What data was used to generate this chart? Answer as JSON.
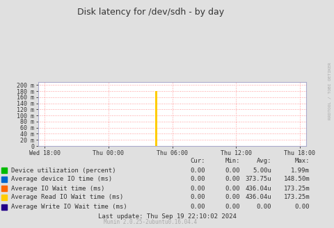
{
  "title": "Disk latency for /dev/sdh - by day",
  "bg_color": "#e0e0e0",
  "plot_bg_color": "#ffffff",
  "grid_color": "#ff9999",
  "yticks": [
    0,
    20,
    40,
    60,
    80,
    100,
    120,
    140,
    160,
    180,
    200
  ],
  "ytick_labels": [
    "0",
    "20 m",
    "40 m",
    "60 m",
    "80 m",
    "100 m",
    "120 m",
    "140 m",
    "160 m",
    "180 m",
    "200 m"
  ],
  "ylim": [
    0,
    210
  ],
  "xtick_labels": [
    "Wed 18:00",
    "Thu 00:00",
    "Thu 06:00",
    "Thu 12:00",
    "Thu 18:00"
  ],
  "spike_color": "#ffcc00",
  "legend_items": [
    {
      "label": "Device utilization (percent)",
      "color": "#00bb00"
    },
    {
      "label": "Average device IO time (ms)",
      "color": "#0066cc"
    },
    {
      "label": "Average IO Wait time (ms)",
      "color": "#ff6600"
    },
    {
      "label": "Average Read IO Wait time (ms)",
      "color": "#ffcc00"
    },
    {
      "label": "Average Write IO Wait time (ms)",
      "color": "#220088"
    }
  ],
  "table_header": [
    "Cur:",
    "Min:",
    "Avg:",
    "Max:"
  ],
  "table_rows": [
    [
      "0.00",
      "0.00",
      "5.00u",
      "1.99m"
    ],
    [
      "0.00",
      "0.00",
      "373.75u",
      "148.50m"
    ],
    [
      "0.00",
      "0.00",
      "436.04u",
      "173.25m"
    ],
    [
      "0.00",
      "0.00",
      "436.04u",
      "173.25m"
    ],
    [
      "0.00",
      "0.00",
      "0.00",
      "0.00"
    ]
  ],
  "last_update": "Last update: Thu Sep 19 22:10:02 2024",
  "munin_version": "Munin 2.0.25-2ubuntu0.16.04.4",
  "rrdtool_label": "RRDTOOL / TOBI OETIKER"
}
